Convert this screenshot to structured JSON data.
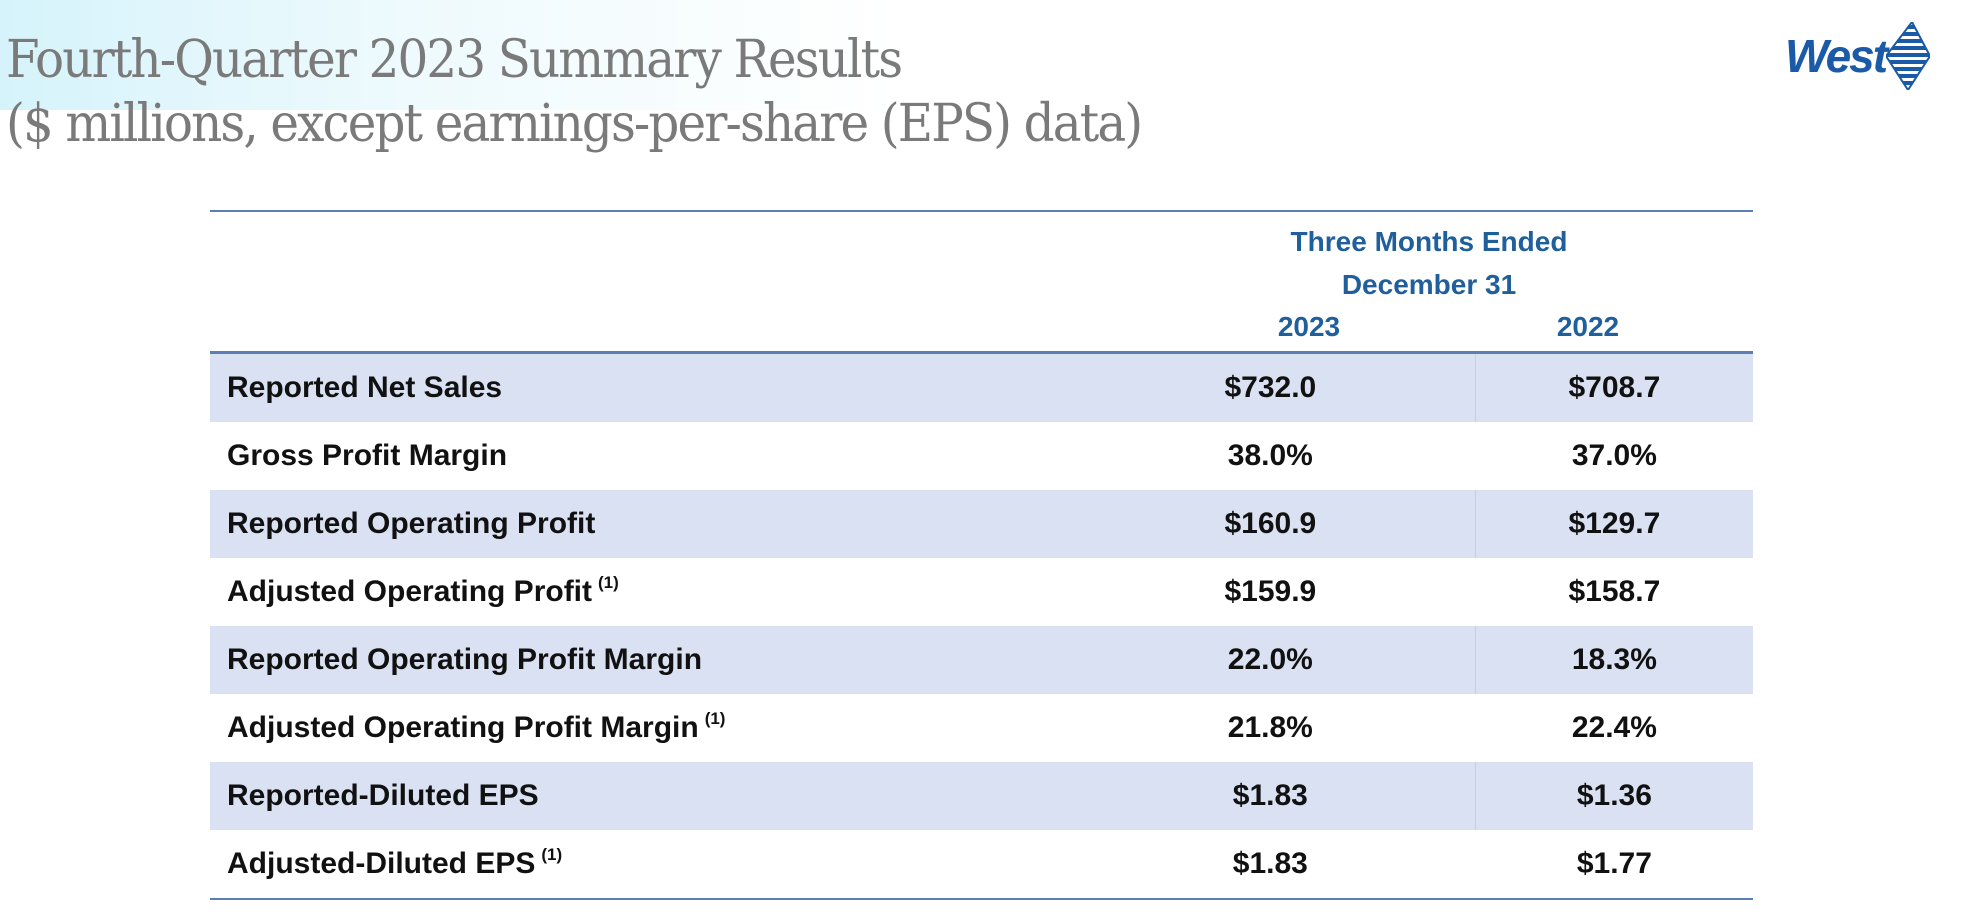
{
  "title": {
    "line1": "Fourth-Quarter 2023 Summary Results",
    "line2": "($ millions, except earnings-per-share (EPS) data)"
  },
  "logo": {
    "text": "West",
    "color": "#1a5aa6"
  },
  "table": {
    "header": {
      "period_line1": "Three Months Ended",
      "period_line2": "December 31",
      "columns": [
        "2023",
        "2022"
      ]
    },
    "rows": [
      {
        "label": "Reported Net Sales",
        "note": "",
        "v2023": "$732.0",
        "v2022": "$708.7"
      },
      {
        "label": "Gross Profit Margin",
        "note": "",
        "v2023": "38.0%",
        "v2022": "37.0%"
      },
      {
        "label": "Reported Operating Profit",
        "note": "",
        "v2023": "$160.9",
        "v2022": "$129.7"
      },
      {
        "label": "Adjusted Operating Profit",
        "note": "(1)",
        "v2023": "$159.9",
        "v2022": "$158.7"
      },
      {
        "label": "Reported Operating Profit Margin",
        "note": "",
        "v2023": "22.0%",
        "v2022": "18.3%"
      },
      {
        "label": "Adjusted Operating Profit Margin",
        "note": "(1)",
        "v2023": "21.8%",
        "v2022": "22.4%"
      },
      {
        "label": "Reported-Diluted EPS",
        "note": "",
        "v2023": "$1.83",
        "v2022": "$1.36"
      },
      {
        "label": "Adjusted-Diluted EPS",
        "note": "(1)",
        "v2023": "$1.83",
        "v2022": "$1.77"
      }
    ],
    "colors": {
      "header_text": "#1f5f9b",
      "shade": "#d9e1f2",
      "rule": "#5b7fb3"
    }
  }
}
